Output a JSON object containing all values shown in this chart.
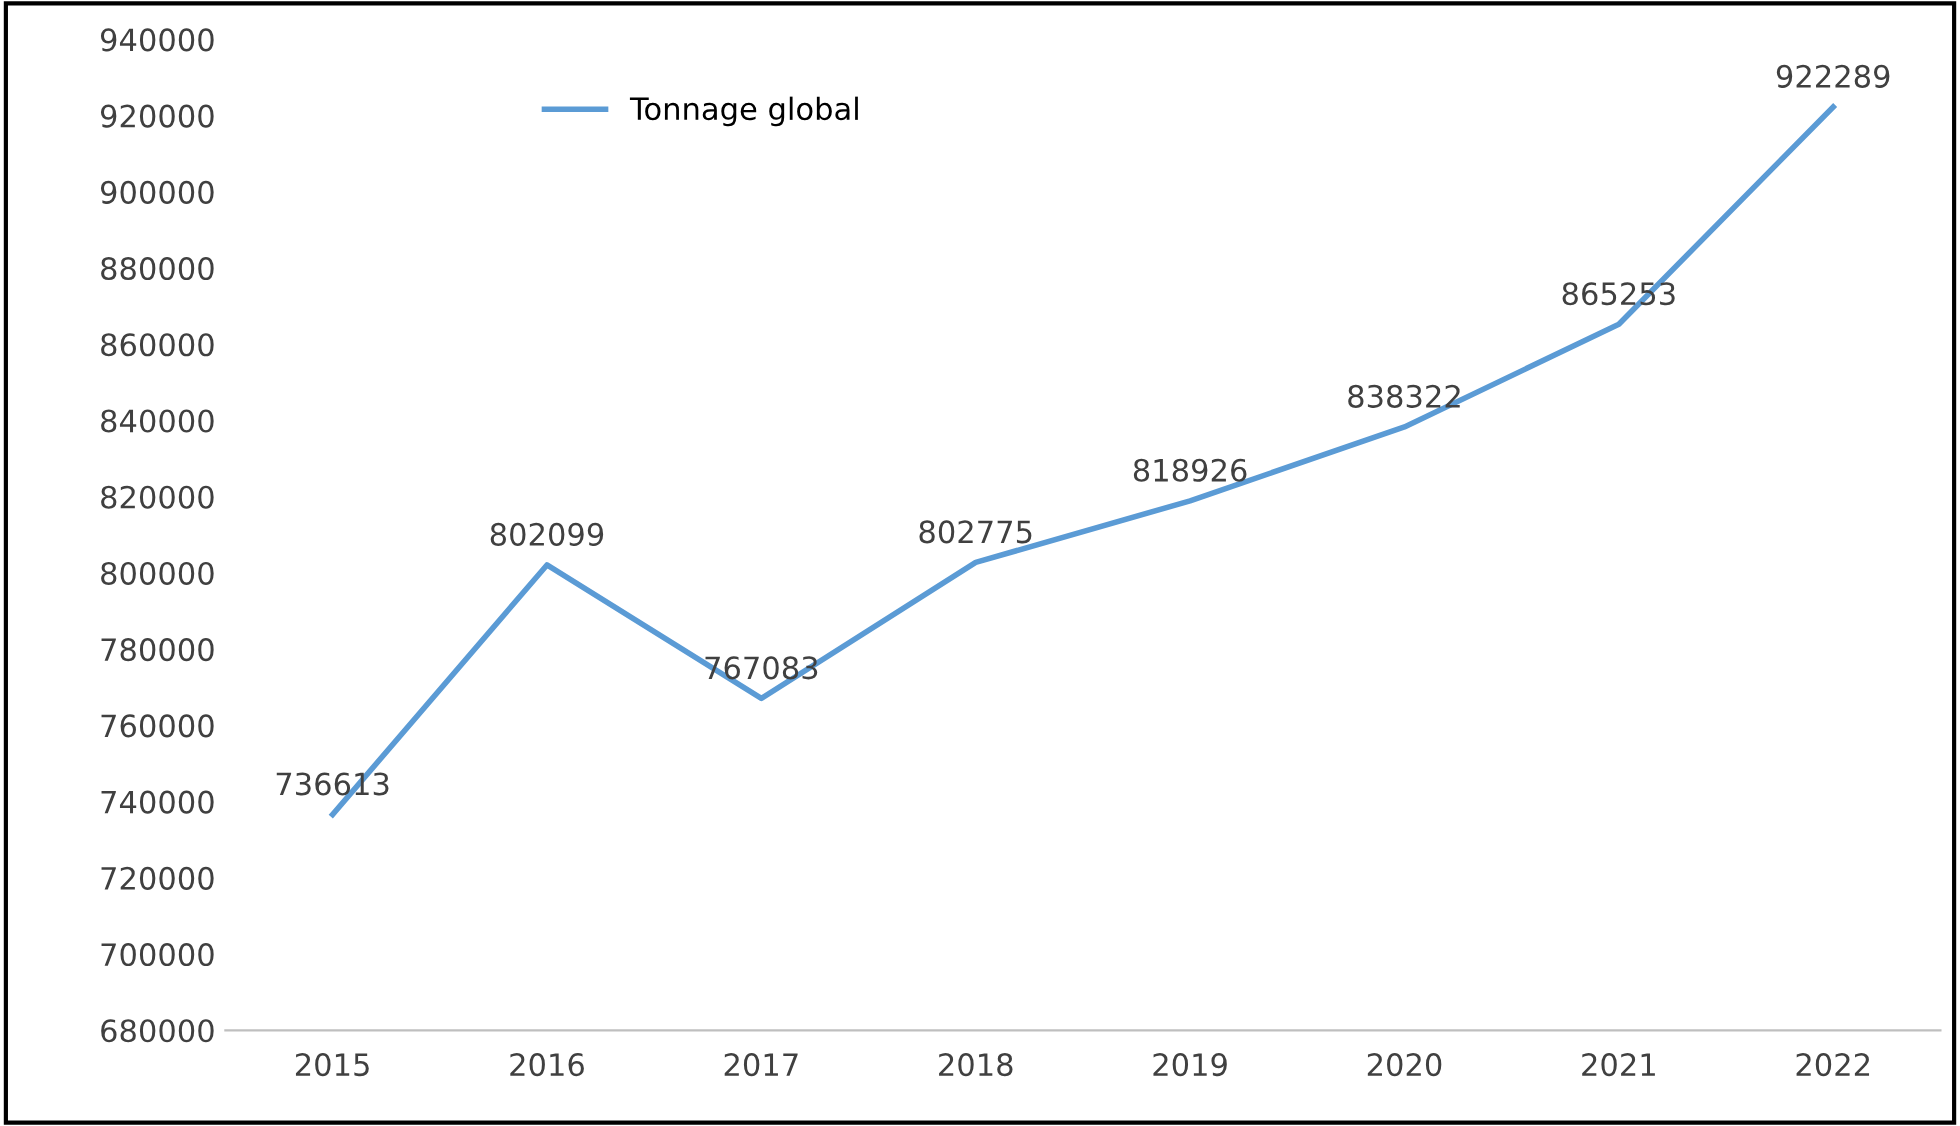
{
  "chart_data": {
    "type": "line",
    "categories": [
      "2015",
      "2016",
      "2017",
      "2018",
      "2019",
      "2020",
      "2021",
      "2022"
    ],
    "series": [
      {
        "name": "Tonnage global",
        "color": "#5b9bd5",
        "values": [
          736613,
          802099,
          767083,
          802775,
          818926,
          838322,
          865253,
          922289
        ]
      }
    ],
    "ylim": [
      680000,
      940000
    ],
    "yticks": [
      680000,
      700000,
      720000,
      740000,
      760000,
      780000,
      800000,
      820000,
      840000,
      860000,
      880000,
      900000,
      920000,
      940000
    ],
    "data_labels": true,
    "legend": "top left",
    "grid": false,
    "marker": "none",
    "line_style": "solid"
  }
}
